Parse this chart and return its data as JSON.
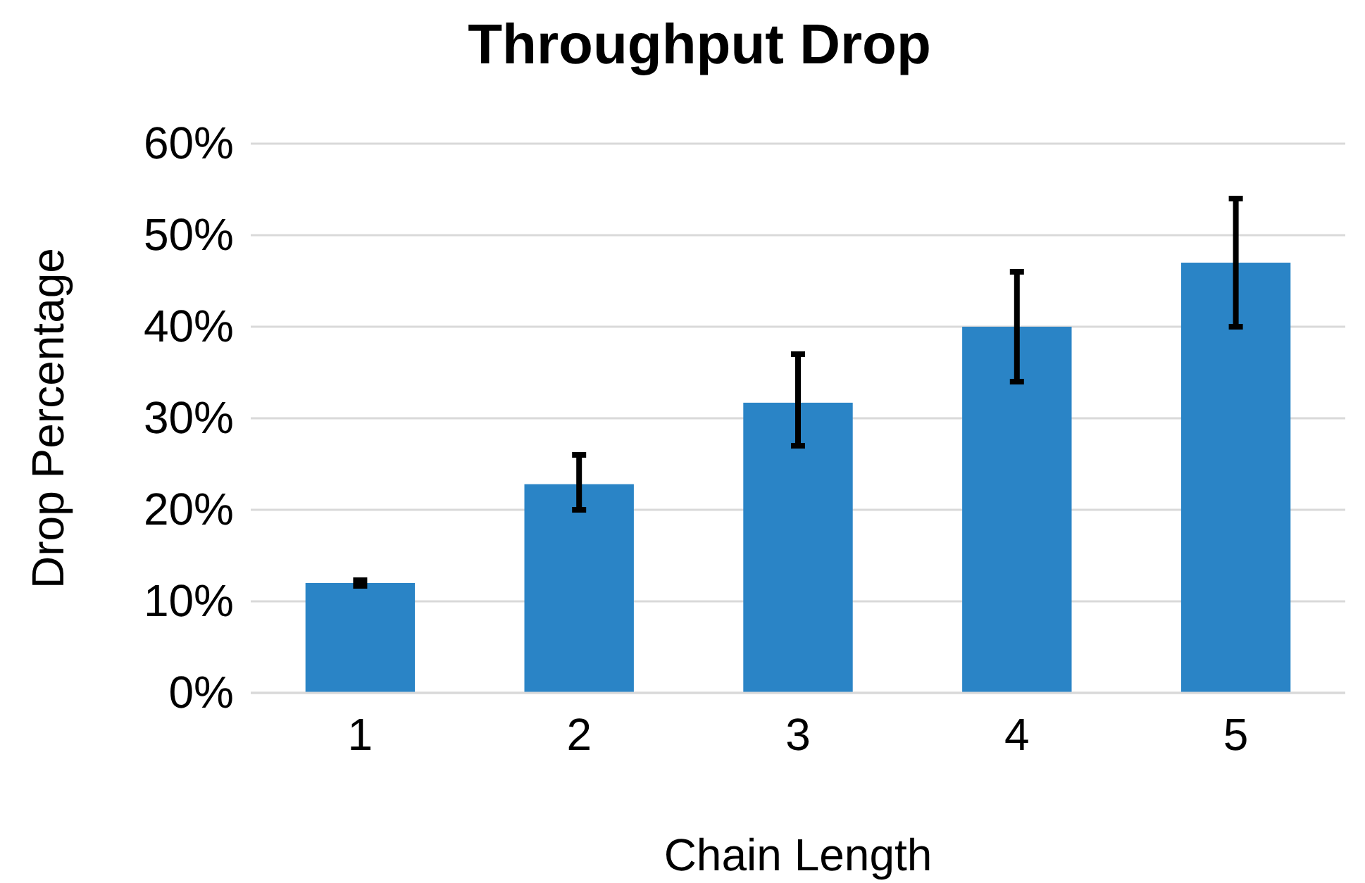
{
  "chart_data": {
    "type": "bar",
    "title": "Throughput Drop",
    "xlabel": "Chain Length",
    "ylabel": "Drop Percentage",
    "categories": [
      "1",
      "2",
      "3",
      "4",
      "5"
    ],
    "values": [
      12,
      22.8,
      31.7,
      40,
      47
    ],
    "errors": [
      [
        11.7,
        12.3
      ],
      [
        20,
        26
      ],
      [
        27,
        37
      ],
      [
        34,
        46
      ],
      [
        40,
        54
      ]
    ],
    "color": "#2a84c6",
    "ylim": [
      0,
      60
    ],
    "yticks": [
      {
        "value": 0,
        "label": "0%"
      },
      {
        "value": 10,
        "label": "10%"
      },
      {
        "value": 20,
        "label": "20%"
      },
      {
        "value": 30,
        "label": "30%"
      },
      {
        "value": 40,
        "label": "40%"
      },
      {
        "value": 50,
        "label": "50%"
      },
      {
        "value": 60,
        "label": "60%"
      }
    ],
    "grid": "y"
  }
}
